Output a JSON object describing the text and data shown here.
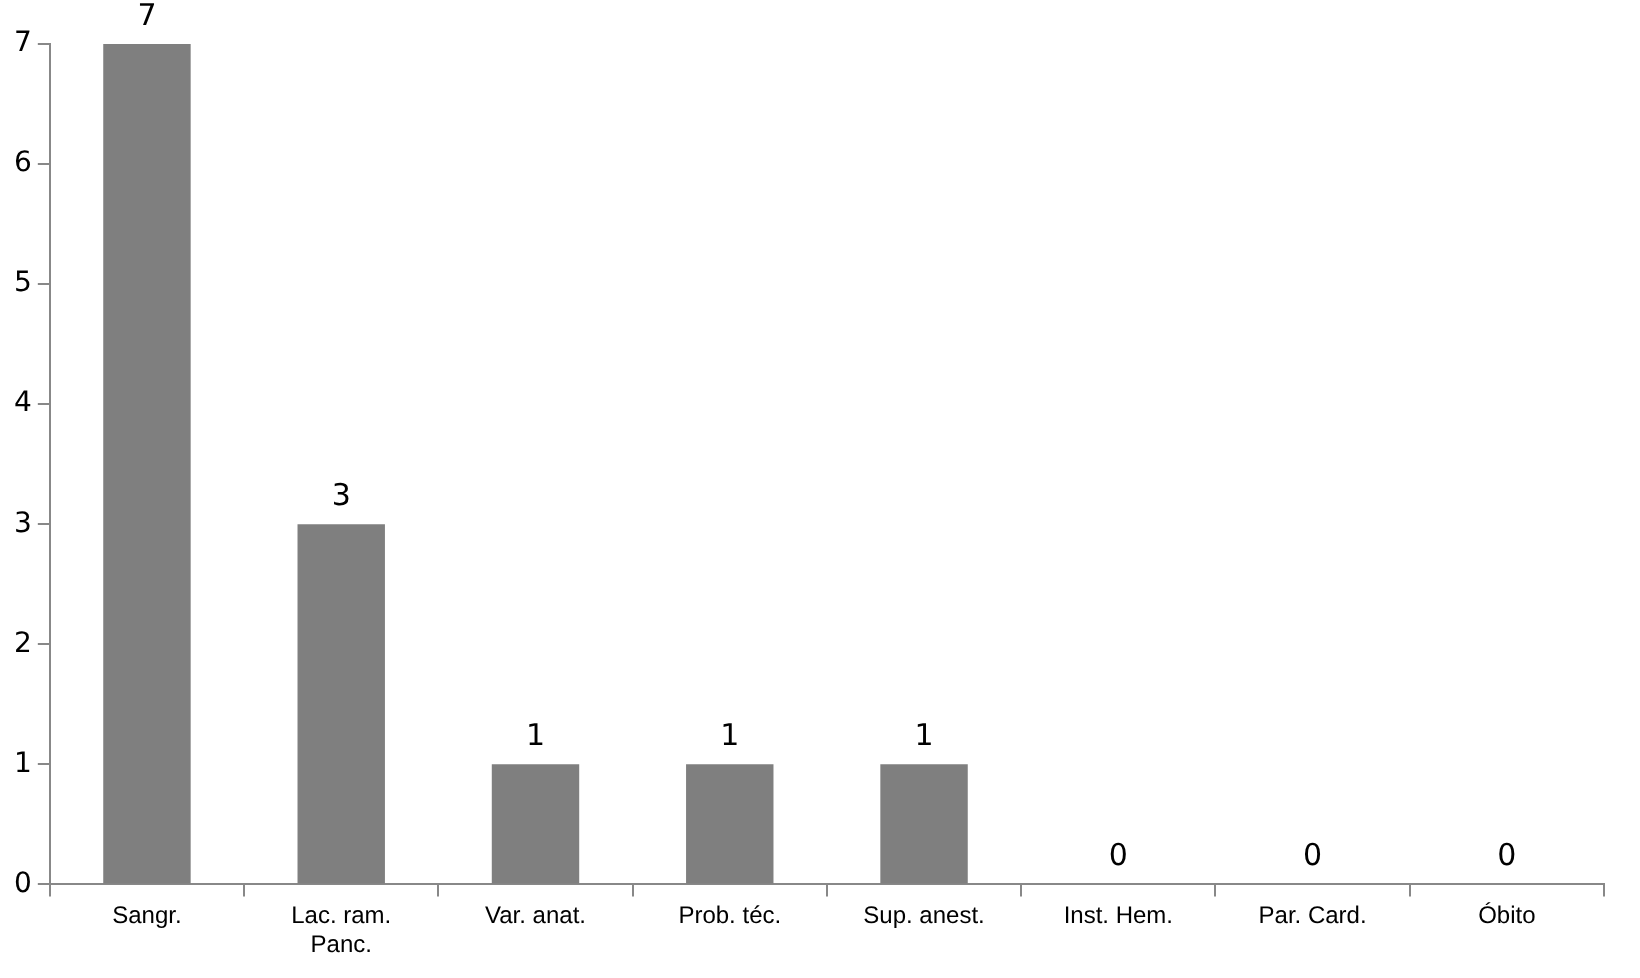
{
  "chart_data": {
    "type": "bar",
    "categories": [
      "Sangr.",
      "Lac. ram.\nPanc.",
      "Var. anat.",
      "Prob. téc.",
      "Sup. anest.",
      "Inst. Hem.",
      "Par. Card.",
      "Óbito"
    ],
    "values": [
      7,
      3,
      1,
      1,
      1,
      0,
      0,
      0
    ],
    "color": "#7f7f7f",
    "ylim": [
      0,
      7
    ],
    "yticks": [
      0,
      1,
      2,
      3,
      4,
      5,
      6,
      7
    ],
    "grid": false,
    "data_labels": true
  }
}
